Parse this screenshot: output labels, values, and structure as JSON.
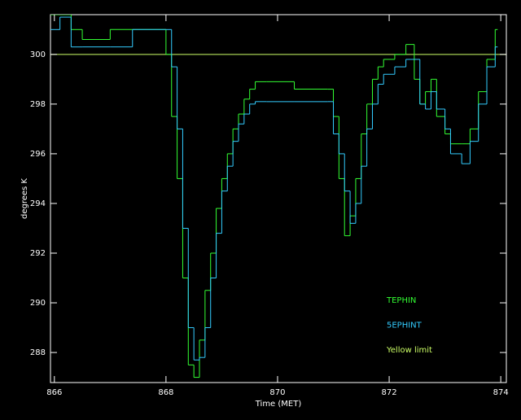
{
  "chart_data": {
    "type": "step",
    "x_label": "Time (MET)",
    "y_label": "degrees K",
    "x": [
      865.93,
      866.1,
      866.3,
      866.5,
      867.0,
      867.4,
      868.0,
      868.1,
      868.2,
      868.3,
      868.4,
      868.5,
      868.6,
      868.7,
      868.8,
      868.9,
      869.0,
      869.1,
      869.2,
      869.3,
      869.4,
      869.5,
      869.6,
      869.8,
      870.3,
      870.9,
      871.0,
      871.1,
      871.2,
      871.3,
      871.4,
      871.5,
      871.6,
      871.7,
      871.8,
      871.9,
      872.1,
      872.3,
      872.45,
      872.55,
      872.65,
      872.75,
      872.85,
      873.0,
      873.1,
      873.3,
      873.45,
      873.6,
      873.75,
      873.9
    ],
    "series": [
      {
        "name": "TEPHIN",
        "color": "#33ff33",
        "values": [
          301.6,
          301.6,
          301,
          300.6,
          301,
          301,
          300,
          297.5,
          295,
          291,
          287.5,
          287,
          288.5,
          290.5,
          292,
          293.8,
          295,
          296,
          297,
          297.6,
          298.2,
          298.6,
          298.9,
          298.9,
          298.6,
          298.6,
          297.5,
          295,
          292.7,
          293.5,
          295,
          296.8,
          298,
          299,
          299.5,
          299.8,
          300,
          300.4,
          299,
          298,
          298.5,
          299,
          297.5,
          296.8,
          296.4,
          296.4,
          297,
          298.5,
          299.8,
          301
        ]
      },
      {
        "name": "5EPHINT",
        "color": "#33ccff",
        "values": [
          301,
          301.5,
          300.3,
          300.3,
          300.3,
          301,
          301,
          299.5,
          297,
          293,
          289,
          287.7,
          287.8,
          289,
          291,
          292.8,
          294.5,
          295.5,
          296.5,
          297.2,
          297.6,
          298,
          298.1,
          298.1,
          298.1,
          298.1,
          296.8,
          296,
          294.5,
          293.2,
          294,
          295.5,
          297,
          298,
          298.8,
          299.2,
          299.5,
          299.8,
          299.8,
          298,
          297.8,
          298.5,
          297.8,
          297,
          296,
          295.6,
          296.5,
          298,
          299.5,
          300.3
        ]
      }
    ],
    "limit": {
      "name": "Yellow limit",
      "value": 300,
      "color": "#ccff66"
    },
    "xlim": [
      865.93,
      874.1
    ],
    "ylim": [
      286.79,
      301.6
    ],
    "xticks": [
      866,
      868,
      870,
      872,
      874
    ],
    "yticks": [
      288,
      290,
      292,
      294,
      296,
      298,
      300
    ],
    "grid": false
  }
}
